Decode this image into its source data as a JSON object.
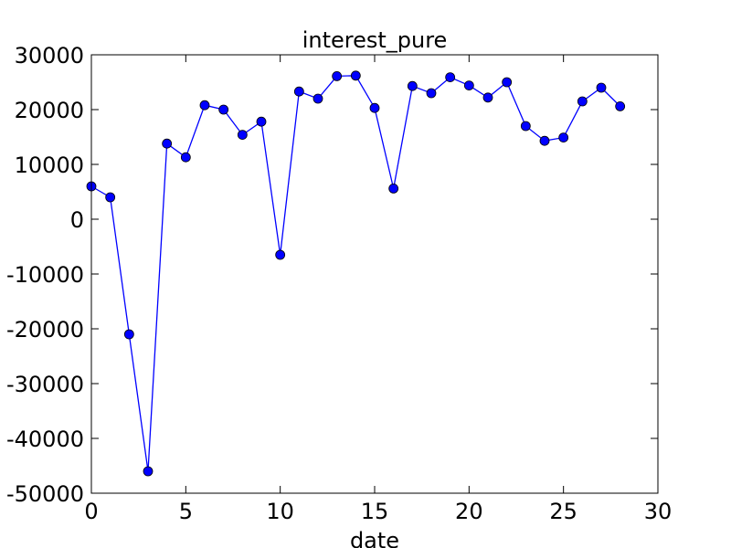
{
  "chart_data": {
    "type": "line",
    "title": "interest_pure",
    "xlabel": "date",
    "ylabel": "",
    "xlim": [
      0,
      30
    ],
    "ylim": [
      -50000,
      30000
    ],
    "xticks": [
      0,
      5,
      10,
      15,
      20,
      25,
      30
    ],
    "yticks": [
      -50000,
      -40000,
      -30000,
      -20000,
      -10000,
      0,
      10000,
      20000,
      30000
    ],
    "grid": false,
    "series": [
      {
        "color": "#0000ff",
        "marker": "circle",
        "x": [
          0,
          1,
          2,
          3,
          4,
          5,
          6,
          7,
          8,
          9,
          10,
          11,
          12,
          13,
          14,
          15,
          16,
          17,
          18,
          19,
          20,
          21,
          22,
          23,
          24,
          25,
          26,
          27,
          28
        ],
        "y": [
          6000,
          4000,
          -21000,
          -46000,
          13800,
          11300,
          20800,
          20000,
          15400,
          17800,
          -6500,
          23300,
          22000,
          26100,
          26200,
          20300,
          5600,
          24300,
          23000,
          25900,
          24400,
          22200,
          25000,
          17000,
          14300,
          14900,
          21500,
          24000,
          20600
        ]
      }
    ]
  }
}
